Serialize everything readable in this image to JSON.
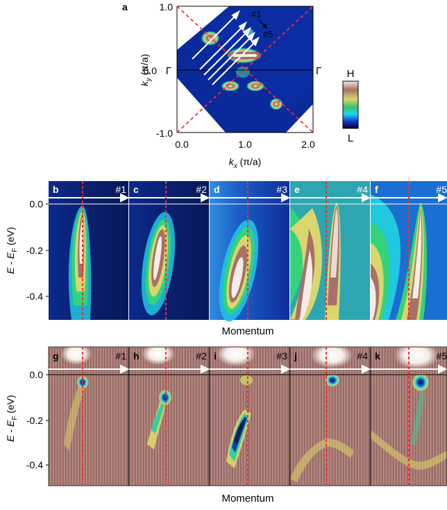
{
  "panel_a": {
    "label": "a",
    "x_axis": {
      "var": "k",
      "sub": "x",
      "unit": "(π/a)",
      "ticks": [
        "0.0",
        "1.0",
        "2.0"
      ]
    },
    "y_axis": {
      "var": "k",
      "sub": "y",
      "unit": "(π/a)",
      "ticks": [
        "1.0",
        "0.0",
        "-1.0"
      ]
    },
    "gamma_left": "Γ",
    "gamma_right": "Γ",
    "cut_first": "#1",
    "cut_last": "#5",
    "colorbar": {
      "high": "H",
      "low": "L",
      "colors": [
        "#f2ebe6",
        "#a77068",
        "#d8d46a",
        "#3fbf6f",
        "#17d8ea",
        "#1838c8",
        "#000033"
      ]
    }
  },
  "row_top": {
    "y_axis": {
      "E": "E",
      "minus": " - ",
      "EF": "E",
      "sub": "F",
      "unit": " (eV)",
      "ticks": [
        "0.0",
        "-0.2",
        "-0.4"
      ]
    },
    "x_label": "Momentum",
    "panels": [
      {
        "letter": "b",
        "cut": "#1"
      },
      {
        "letter": "c",
        "cut": "#2"
      },
      {
        "letter": "d",
        "cut": "#3"
      },
      {
        "letter": "e",
        "cut": "#4"
      },
      {
        "letter": "f",
        "cut": "#5"
      }
    ]
  },
  "row_bottom": {
    "y_axis": {
      "E": "E",
      "minus": " - ",
      "EF": "E",
      "sub": "F",
      "unit": " (eV)",
      "ticks": [
        "0.0",
        "-0.2",
        "-0.4"
      ]
    },
    "x_label": "Momentum",
    "panels": [
      {
        "letter": "g",
        "cut": "#1"
      },
      {
        "letter": "h",
        "cut": "#2"
      },
      {
        "letter": "i",
        "cut": "#3"
      },
      {
        "letter": "j",
        "cut": "#4"
      },
      {
        "letter": "k",
        "cut": "#5"
      }
    ]
  }
}
